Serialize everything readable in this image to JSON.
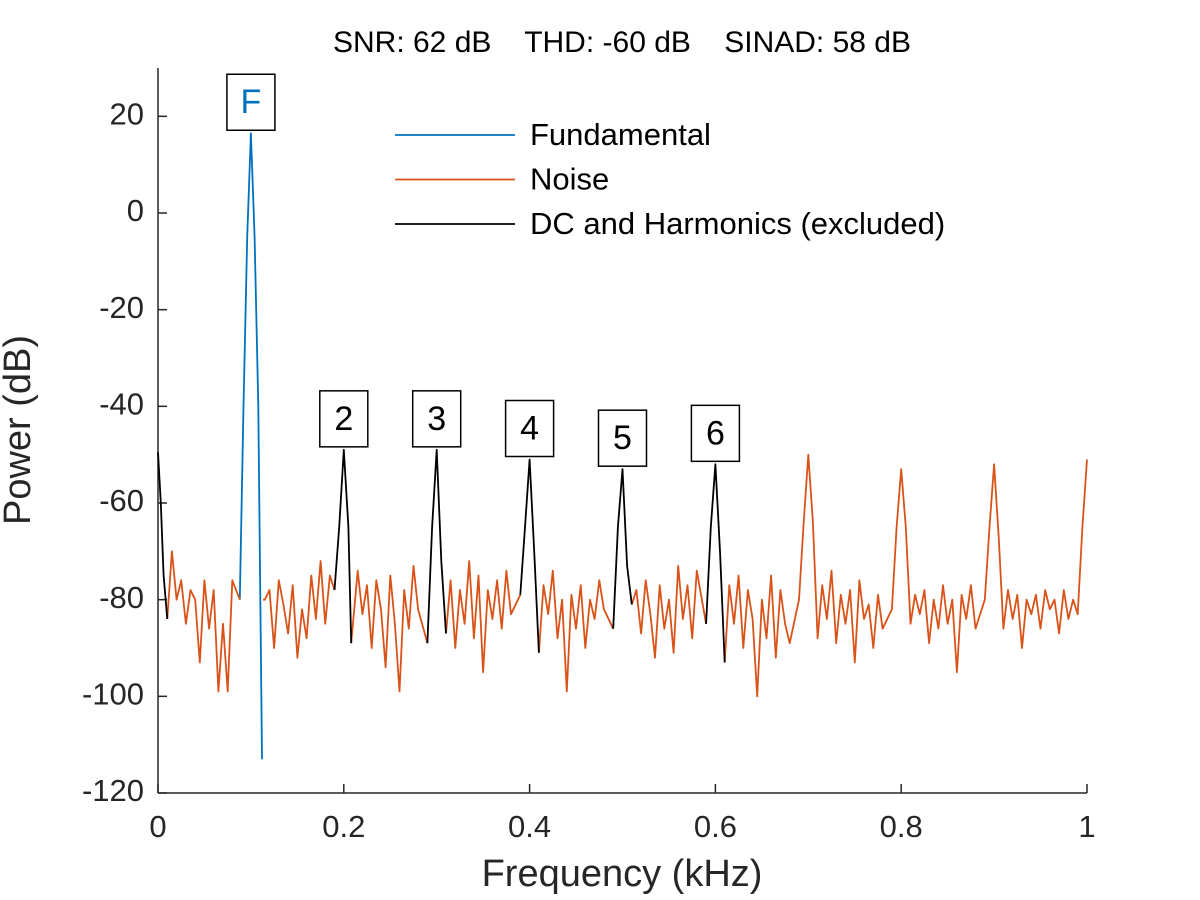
{
  "chart_data": {
    "type": "line",
    "title": "SNR: 62 dB    THD: -60 dB    SINAD: 58 dB",
    "x_label": "Frequency (kHz)",
    "y_label": "Power (dB)",
    "xlim": [
      0,
      1
    ],
    "xticks": [
      0,
      0.2,
      0.4,
      0.6,
      0.8,
      1
    ],
    "ylim": [
      -120,
      30
    ],
    "yticks": [
      -120,
      -100,
      -80,
      -60,
      -40,
      -20,
      0,
      20
    ],
    "legend": "north",
    "series": [
      {
        "name": "Fundamental",
        "color": "#0072bd",
        "x": [
          0.088,
          0.092,
          0.096,
          0.1,
          0.104,
          0.108,
          0.112
        ],
        "values": [
          -80,
          -40,
          -5,
          16.5,
          -5,
          -40,
          -113
        ]
      },
      {
        "name": "Noise",
        "color": "#d95319",
        "x": [
          0.01,
          0.015,
          0.02,
          0.025,
          0.03,
          0.035,
          0.04,
          0.045,
          0.05,
          0.055,
          0.06,
          0.065,
          0.07,
          0.075,
          0.08,
          0.088,
          0.095,
          0.113,
          0.115,
          0.12,
          0.125,
          0.13,
          0.135,
          0.14,
          0.145,
          0.15,
          0.155,
          0.16,
          0.165,
          0.17,
          0.175,
          0.18,
          0.185,
          0.19,
          0.2,
          0.208,
          0.215,
          0.22,
          0.225,
          0.23,
          0.235,
          0.24,
          0.245,
          0.25,
          0.255,
          0.26,
          0.265,
          0.27,
          0.275,
          0.28,
          0.29,
          0.3,
          0.31,
          0.315,
          0.32,
          0.325,
          0.33,
          0.335,
          0.34,
          0.345,
          0.35,
          0.355,
          0.36,
          0.365,
          0.37,
          0.375,
          0.38,
          0.39,
          0.4,
          0.41,
          0.415,
          0.42,
          0.425,
          0.43,
          0.435,
          0.44,
          0.445,
          0.45,
          0.455,
          0.46,
          0.465,
          0.47,
          0.475,
          0.48,
          0.49,
          0.5,
          0.51,
          0.515,
          0.52,
          0.525,
          0.53,
          0.535,
          0.54,
          0.545,
          0.55,
          0.555,
          0.56,
          0.565,
          0.57,
          0.575,
          0.58,
          0.59,
          0.6,
          0.61,
          0.615,
          0.62,
          0.625,
          0.63,
          0.635,
          0.64,
          0.645,
          0.65,
          0.655,
          0.66,
          0.665,
          0.67,
          0.675,
          0.68,
          0.69,
          0.695,
          0.7,
          0.705,
          0.71,
          0.715,
          0.72,
          0.725,
          0.73,
          0.735,
          0.74,
          0.745,
          0.75,
          0.755,
          0.76,
          0.765,
          0.77,
          0.775,
          0.78,
          0.79,
          0.795,
          0.8,
          0.805,
          0.81,
          0.815,
          0.82,
          0.825,
          0.83,
          0.835,
          0.84,
          0.845,
          0.85,
          0.855,
          0.86,
          0.865,
          0.87,
          0.875,
          0.88,
          0.89,
          0.895,
          0.9,
          0.905,
          0.91,
          0.915,
          0.92,
          0.925,
          0.93,
          0.935,
          0.94,
          0.945,
          0.95,
          0.955,
          0.96,
          0.965,
          0.97,
          0.975,
          0.98,
          0.985,
          0.99,
          0.995,
          1
        ],
        "values": [
          -84,
          -70,
          -80,
          -76,
          -85,
          -78,
          -80,
          -93,
          -76,
          -86,
          -78,
          -99,
          -85,
          -99,
          -76,
          -80,
          null,
          -80,
          -80,
          -78,
          -90,
          -76,
          -81,
          -87,
          -77,
          -92,
          -82,
          -88,
          -75,
          -84,
          -72,
          -85,
          -75,
          -78,
          null,
          -89,
          -74,
          -83,
          -77,
          -90,
          -76,
          -82,
          -94,
          -75,
          -85,
          -99,
          -78,
          -86,
          -73,
          -82,
          -89,
          null,
          -87,
          -76,
          -90,
          -78,
          -85,
          -72,
          -88,
          -75,
          -95,
          -78,
          -84,
          -76,
          -86,
          -74,
          -83,
          -79,
          null,
          -91,
          -77,
          -83,
          -74,
          -88,
          -80,
          -99,
          -79,
          -86,
          -77,
          -90,
          -80,
          -84,
          -76,
          -82,
          -86,
          null,
          -81,
          -78,
          -87,
          -76,
          -83,
          -92,
          -77,
          -86,
          -80,
          -91,
          -73,
          -84,
          -77,
          -88,
          -74,
          -85,
          null,
          -93,
          -77,
          -85,
          -75,
          -90,
          -78,
          -84,
          -100,
          -80,
          -88,
          -75,
          -92,
          -78,
          -85,
          -89,
          -80,
          -64,
          -50,
          -64,
          -88,
          -77,
          -84,
          -74,
          -89,
          -79,
          -85,
          -78,
          -93,
          -76,
          -84,
          -81,
          -90,
          -79,
          -86,
          -82,
          -65,
          -53,
          -65,
          -85,
          -79,
          -83,
          -78,
          -89,
          -80,
          -86,
          -77,
          -85,
          -80,
          -95,
          -79,
          -84,
          -77,
          -86,
          -80,
          -65,
          -52,
          -67,
          -86,
          -78,
          -84,
          -79,
          -90,
          -80,
          -83,
          -79,
          -86,
          -78,
          -82,
          -80,
          -87,
          -78,
          -84,
          -80,
          -83,
          -65,
          -51
        ]
      },
      {
        "name": "DC and Harmonics (excluded)",
        "color": "#000000",
        "x": [
          0,
          0.003,
          0.006,
          0.01,
          0.1,
          0.19,
          0.195,
          0.2,
          0.205,
          0.208,
          0.25,
          0.29,
          0.295,
          0.3,
          0.305,
          0.31,
          0.35,
          0.39,
          0.395,
          0.4,
          0.405,
          0.41,
          0.45,
          0.49,
          0.495,
          0.5,
          0.505,
          0.51,
          0.55,
          0.59,
          0.595,
          0.6,
          0.605,
          0.61
        ],
        "values": [
          -49.5,
          -60,
          -75,
          -84,
          null,
          -78,
          -65,
          -49,
          -65,
          -89,
          null,
          -89,
          -65,
          -49,
          -72,
          -87,
          null,
          -79,
          -65,
          -51,
          -70,
          -91,
          null,
          -86,
          -65,
          -53,
          -73,
          -81,
          null,
          -85,
          -65,
          -52,
          -70,
          -93
        ]
      }
    ],
    "peak_labels": [
      {
        "label": "F",
        "x": 0.1,
        "value": 16.5,
        "color": "#0072bd"
      },
      {
        "label": "2",
        "x": 0.2,
        "value": -49,
        "color": "#000000"
      },
      {
        "label": "3",
        "x": 0.3,
        "value": -49,
        "color": "#000000"
      },
      {
        "label": "4",
        "x": 0.4,
        "value": -51,
        "color": "#000000"
      },
      {
        "label": "5",
        "x": 0.5,
        "value": -53,
        "color": "#000000"
      },
      {
        "label": "6",
        "x": 0.6,
        "value": -52,
        "color": "#000000"
      }
    ]
  }
}
